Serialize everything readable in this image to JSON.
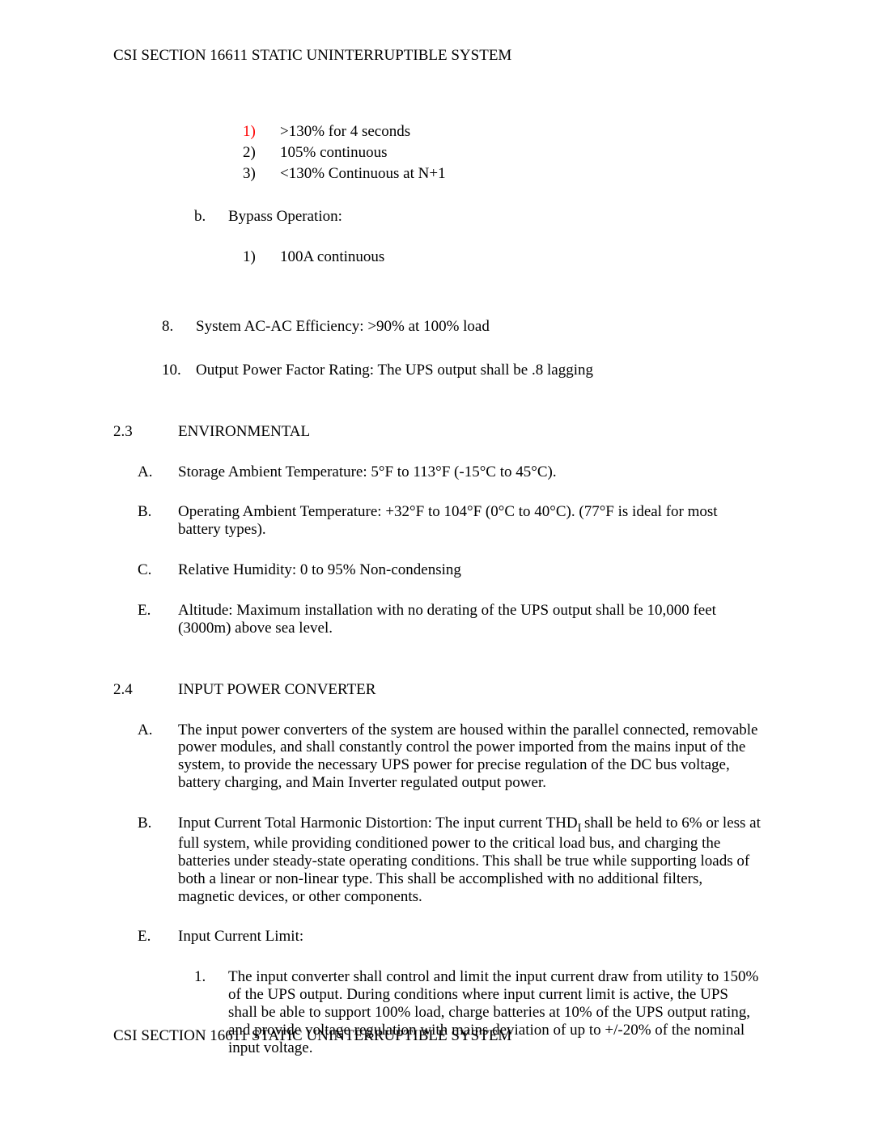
{
  "header": "CSI SECTION 16611 STATIC UNINTERRUPTIBLE SYSTEM",
  "footer": "CSI SECTION 16611 STATIC UNINTERRUPTIBLE SYSTEM",
  "topBlock": {
    "numItems": [
      {
        "n": "1)",
        "text": ">130% for 4 seconds",
        "red": true
      },
      {
        "n": "2)",
        "text": "105% continuous",
        "red": false
      },
      {
        "n": "3)",
        "text": "<130% Continuous at N+1",
        "red": false
      }
    ],
    "subB": {
      "lbl": "b.",
      "title": "Bypass Operation:",
      "inner": [
        {
          "n": "1)",
          "text": "100A continuous"
        }
      ]
    },
    "nums": [
      {
        "n": "8.",
        "text": "System AC-AC Efficiency:  >90% at 100% load"
      },
      {
        "n": "10.",
        "text": "Output Power Factor Rating:  The UPS output shall be .8 lagging"
      }
    ]
  },
  "section23": {
    "num": "2.3",
    "title": "ENVIRONMENTAL",
    "items": [
      {
        "l": "A.",
        "text": "Storage Ambient Temperature:  5°F to 113°F (-15°C to 45°C)."
      },
      {
        "l": "B.",
        "text": "Operating Ambient Temperature:  +32°F to 104°F (0°C to 40°C).  (77°F is ideal for most battery types)."
      },
      {
        "l": "C.",
        "text": "Relative Humidity:  0 to 95% Non-condensing"
      },
      {
        "l": "E.",
        "text": "Altitude:  Maximum installation with no derating of the UPS output shall be 10,000 feet (3000m) above sea level."
      }
    ]
  },
  "section24": {
    "num": "2.4",
    "title": "INPUT POWER CONVERTER",
    "items": [
      {
        "l": "A.",
        "text": "The input power converters of the system are housed within the parallel connected, removable power modules, and shall constantly control the power imported from the mains input of the system, to provide the necessary UPS power for precise regulation of the DC bus voltage, battery charging, and Main Inverter regulated output power."
      },
      {
        "l": "B.",
        "html": "Input Current Total Harmonic Distortion:  The input current THD<sub>I </sub>shall be held to 6% or less at full system, while providing conditioned power to the critical load bus, and charging the batteries under steady-state operating conditions. This shall be true while supporting loads of both a linear or non-linear type. This shall be accomplished with no additional filters, magnetic devices, or other components."
      },
      {
        "l": "E.",
        "text": "Input Current Limit:",
        "sub": [
          {
            "n": "1.",
            "text": "The input converter shall control and limit the input current draw from utility to 150% of the UPS output. During conditions where input current limit is active, the UPS shall be able to support 100% load, charge batteries at 10% of the UPS output rating, and provide voltage regulation with mains deviation of up to +/-20% of the nominal input voltage."
          }
        ]
      }
    ]
  }
}
